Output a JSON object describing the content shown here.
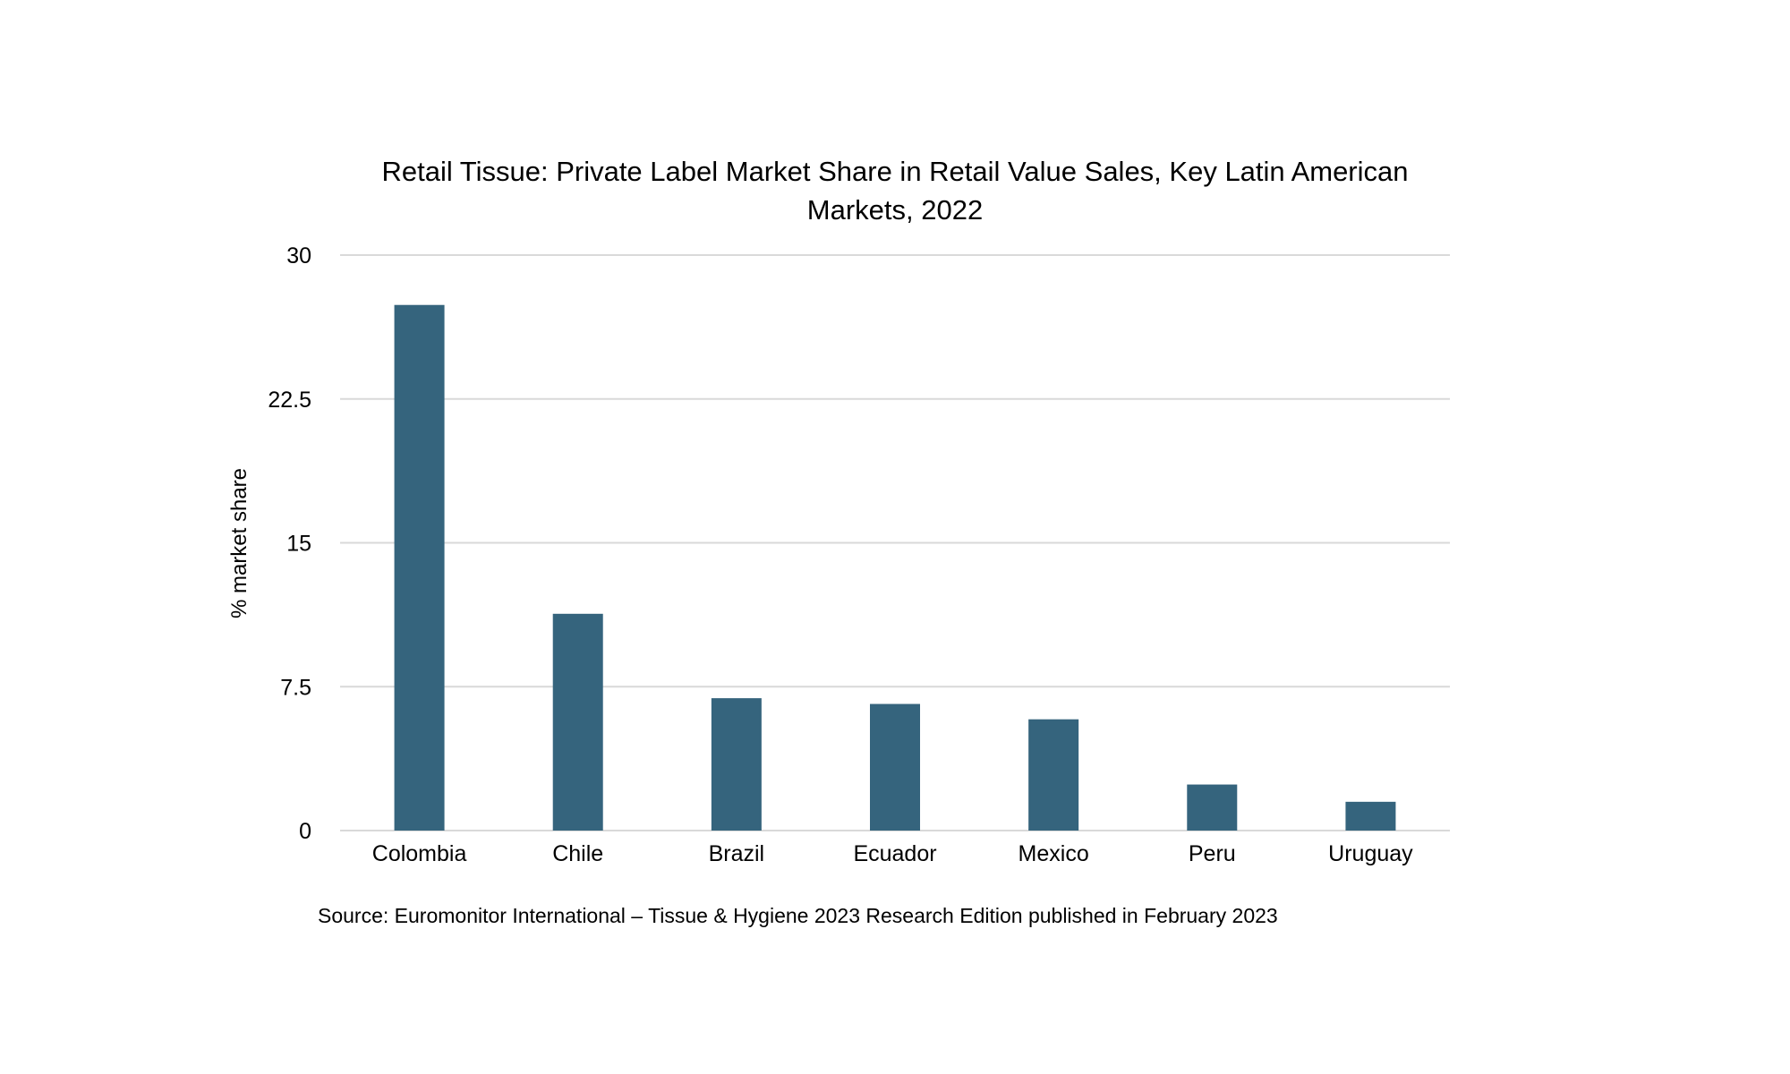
{
  "chart_data": {
    "type": "bar",
    "title": "Retail Tissue: Private Label Market Share in Retail Value Sales, Key Latin American Markets, 2022",
    "ylabel": "% market share",
    "xlabel": "",
    "categories": [
      "Colombia",
      "Chile",
      "Brazil",
      "Ecuador",
      "Mexico",
      "Peru",
      "Uruguay"
    ],
    "values": [
      27.4,
      11.3,
      6.9,
      6.6,
      5.8,
      2.4,
      1.5
    ],
    "ylim": [
      0,
      30
    ],
    "yticks": [
      0,
      7.5,
      15,
      22.5,
      30
    ],
    "ytick_labels": [
      "0",
      "7.5",
      "15",
      "22.5",
      "30"
    ],
    "grid": true,
    "bar_color": "#35647d",
    "gridline_color": "#d9d9d9",
    "legend": "none",
    "source": "Source: Euromonitor International – Tissue & Hygiene 2023 Research Edition published in February 2023"
  }
}
